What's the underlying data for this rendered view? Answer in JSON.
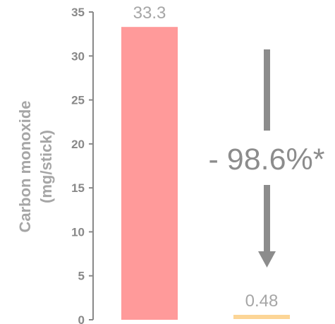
{
  "chart_data": {
    "type": "bar",
    "categories": [
      "",
      ""
    ],
    "values": [
      33.3,
      0.48
    ],
    "value_labels": [
      "33.3",
      "0.48"
    ],
    "bar_colors": [
      "#ff9a9a",
      "#fcd596"
    ],
    "ylabel_lines": [
      "Carbon monoxide",
      "(mg/stick)"
    ],
    "ylim": [
      0,
      35
    ],
    "yticks": [
      0,
      5,
      10,
      15,
      20,
      25,
      30,
      35
    ],
    "grid": false,
    "annotation": "- 98.6%*",
    "annotation_color": "#8c8c8c",
    "axis_color": "#888888",
    "label_color": "#a6a6a6"
  }
}
